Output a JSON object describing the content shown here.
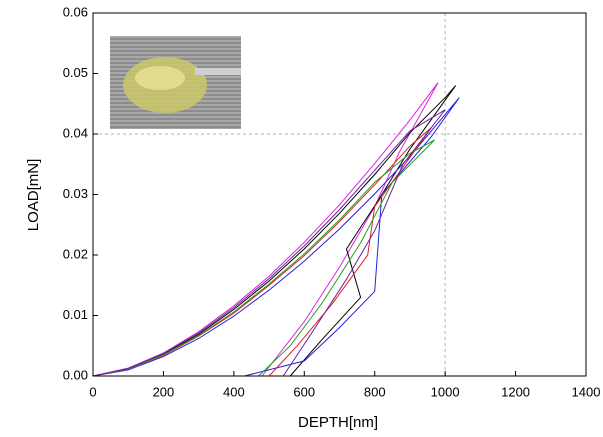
{
  "chart_data": {
    "type": "line",
    "xlabel": "DEPTH[nm]",
    "ylabel": "LOAD[mN]",
    "xlim": [
      0,
      1400
    ],
    "ylim": [
      0,
      0.06
    ],
    "xticks": [
      0,
      200,
      400,
      600,
      800,
      1000,
      1200,
      1400
    ],
    "yticks": [
      {
        "value": 0,
        "label": "0.00"
      },
      0.01,
      0.02,
      0.03,
      0.04,
      0.05,
      0.06
    ],
    "reference_lines": {
      "x": [
        1000
      ],
      "y": [
        0.04
      ],
      "color": "#b0b0b0"
    },
    "series": [
      {
        "color": "#e020e0",
        "x": [
          0,
          100,
          200,
          300,
          400,
          500,
          600,
          700,
          800,
          900,
          980,
          870,
          800,
          700,
          600,
          480
        ],
        "values": [
          0,
          0.0013,
          0.0038,
          0.0073,
          0.0116,
          0.0165,
          0.0221,
          0.0283,
          0.0351,
          0.0423,
          0.0485,
          0.037,
          0.028,
          0.018,
          0.009,
          0
        ]
      },
      {
        "color": "#000000",
        "x": [
          0,
          100,
          200,
          300,
          400,
          500,
          600,
          700,
          800,
          900,
          1000,
          1030,
          900,
          810,
          720,
          760,
          650,
          560
        ],
        "values": [
          0,
          0.0012,
          0.0036,
          0.0069,
          0.011,
          0.0157,
          0.021,
          0.0269,
          0.0333,
          0.0402,
          0.046,
          0.048,
          0.0375,
          0.029,
          0.021,
          0.013,
          0.006,
          0
        ]
      },
      {
        "color": "#2020e0",
        "x": [
          0,
          100,
          200,
          300,
          400,
          500,
          600,
          700,
          800,
          900,
          1000,
          1040,
          960,
          820,
          800,
          700,
          600,
          430
        ],
        "values": [
          0,
          0.001,
          0.0032,
          0.0062,
          0.0099,
          0.0142,
          0.019,
          0.0243,
          0.0301,
          0.0363,
          0.0432,
          0.046,
          0.0395,
          0.03,
          0.014,
          0.008,
          0.0025,
          0
        ]
      },
      {
        "color": "#e02020",
        "x": [
          0,
          100,
          200,
          300,
          400,
          500,
          600,
          700,
          800,
          900,
          960,
          800,
          780,
          680,
          580,
          500
        ],
        "values": [
          0,
          0.0011,
          0.0034,
          0.0066,
          0.0104,
          0.015,
          0.0199,
          0.0255,
          0.0316,
          0.038,
          0.041,
          0.028,
          0.02,
          0.012,
          0.005,
          0
        ]
      },
      {
        "color": "#20a020",
        "x": [
          0,
          100,
          200,
          300,
          400,
          500,
          600,
          700,
          800,
          900,
          970,
          850,
          760,
          650,
          560,
          470
        ],
        "values": [
          0,
          0.0011,
          0.0035,
          0.0067,
          0.0106,
          0.0152,
          0.0202,
          0.0258,
          0.032,
          0.0368,
          0.039,
          0.032,
          0.022,
          0.012,
          0.005,
          0
        ]
      },
      {
        "color": "#7020a0",
        "x": [
          0,
          100,
          200,
          300,
          400,
          500,
          600,
          700,
          800,
          900,
          1000,
          880,
          800,
          720,
          620,
          540
        ],
        "values": [
          0,
          0.0012,
          0.0037,
          0.0071,
          0.0113,
          0.0161,
          0.0215,
          0.0275,
          0.034,
          0.0405,
          0.044,
          0.035,
          0.024,
          0.016,
          0.007,
          0
        ]
      }
    ]
  }
}
